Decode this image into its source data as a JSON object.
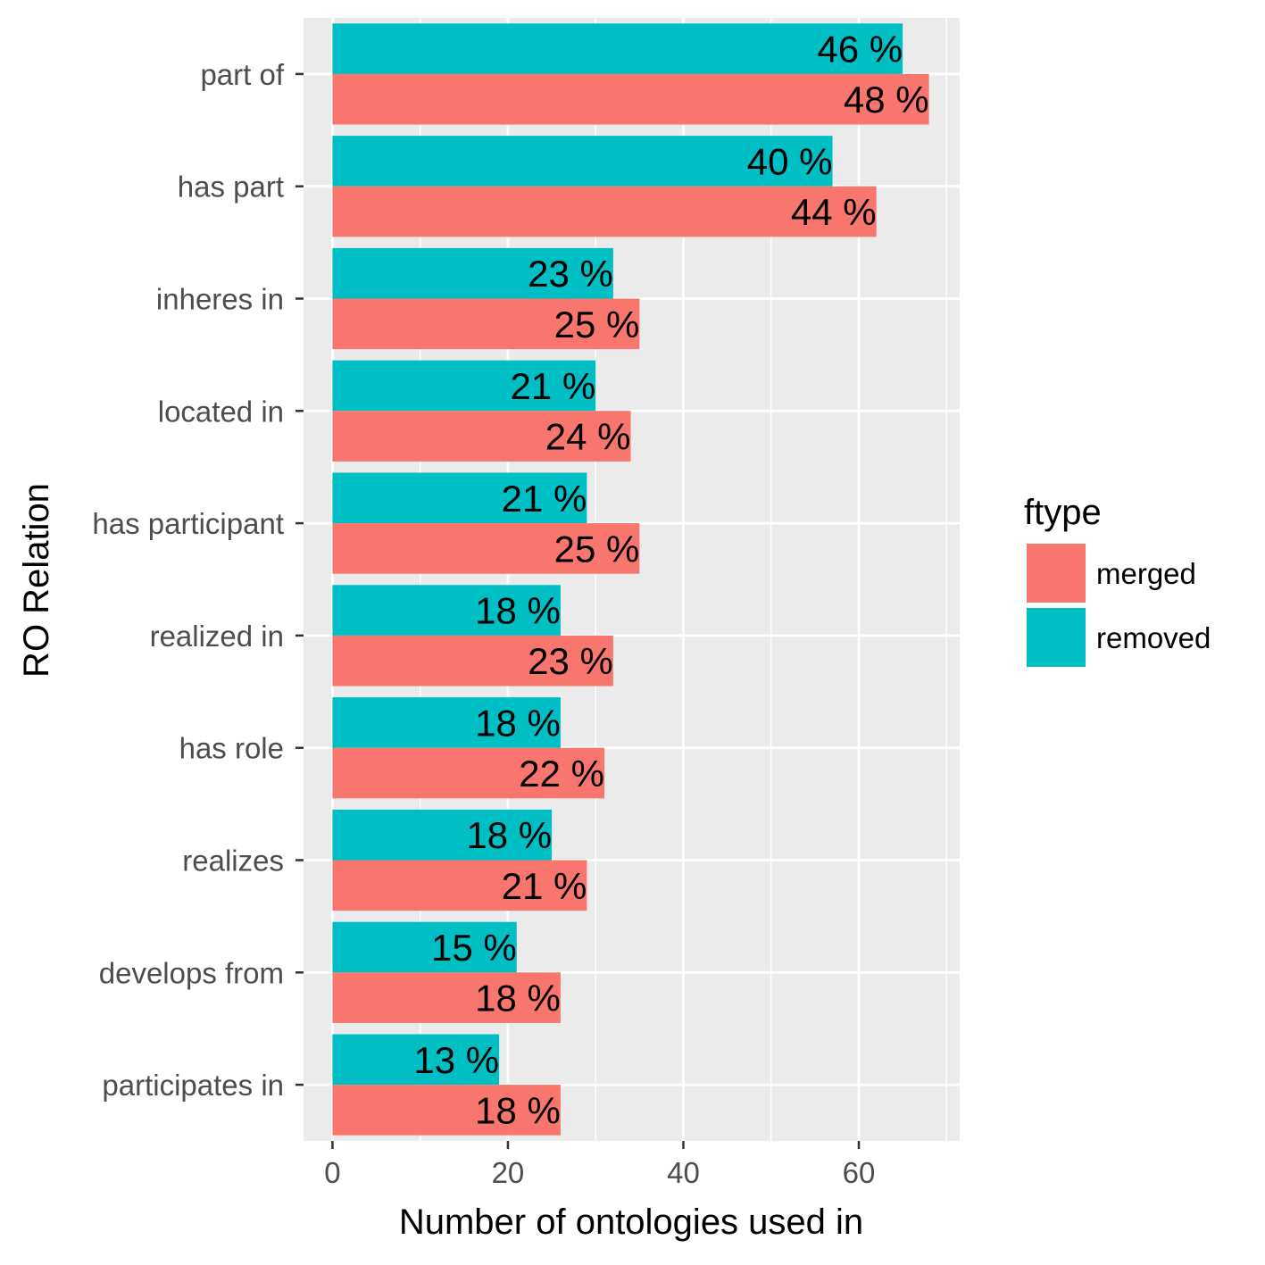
{
  "chart_data": {
    "type": "bar",
    "orientation": "horizontal",
    "xlabel": "Number of ontologies used in",
    "ylabel": "RO Relation",
    "xlim": [
      -3.3,
      71.5
    ],
    "xticks": [
      0,
      20,
      40,
      60
    ],
    "grid": true,
    "legend_position": "right",
    "legend": {
      "title": "ftype",
      "entries": [
        {
          "name": "merged",
          "color": "#F8766D"
        },
        {
          "name": "removed",
          "color": "#00BFC4"
        }
      ]
    },
    "categories": [
      "part of",
      "has part",
      "inheres in",
      "located in",
      "has participant",
      "realized in",
      "has role",
      "realizes",
      "develops from",
      "participates in"
    ],
    "series": [
      {
        "name": "removed",
        "color": "#00BFC4",
        "values": [
          65,
          57,
          32,
          30,
          29,
          26,
          26,
          25,
          21,
          19
        ],
        "labels": [
          "46 %",
          "40 %",
          "23 %",
          "21 %",
          "21 %",
          "18 %",
          "18 %",
          "18 %",
          "15 %",
          "13 %"
        ]
      },
      {
        "name": "merged",
        "color": "#F8766D",
        "values": [
          68,
          62,
          35,
          34,
          35,
          32,
          31,
          29,
          26,
          26
        ],
        "labels": [
          "48 %",
          "44 %",
          "25 %",
          "24 %",
          "25 %",
          "23 %",
          "22 %",
          "21 %",
          "18 %",
          "18 %"
        ]
      }
    ]
  }
}
